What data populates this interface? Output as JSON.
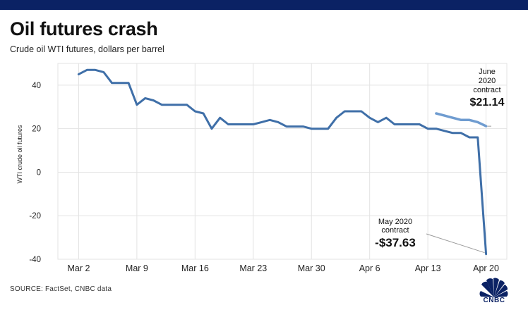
{
  "header": {
    "title": "Oil futures crash",
    "subtitle": "Crude oil WTI futures, dollars per barrel"
  },
  "footer": {
    "source": "SOURCE: FactSet, CNBC data",
    "logo_text": "CNBC"
  },
  "colors": {
    "top_bar": "#0b2264",
    "may_line": "#3f6fa8",
    "june_line": "#6f9cd0",
    "grid": "#e3e3e3",
    "axis_text": "#222222"
  },
  "chart_data": {
    "type": "line",
    "title": "Oil futures crash",
    "subtitle": "Crude oil WTI futures, dollars per barrel",
    "ylabel": "WTI crude oil futures",
    "xlabel": "",
    "ylim": [
      -40,
      50
    ],
    "yticks": [
      -40,
      -20,
      0,
      20,
      40
    ],
    "xticks": [
      {
        "label": "Mar 2",
        "day": 0
      },
      {
        "label": "Mar 9",
        "day": 7
      },
      {
        "label": "Mar 16",
        "day": 14
      },
      {
        "label": "Mar 23",
        "day": 21
      },
      {
        "label": "Mar 30",
        "day": 28
      },
      {
        "label": "Apr 6",
        "day": 35
      },
      {
        "label": "Apr 13",
        "day": 42
      },
      {
        "label": "Apr 20",
        "day": 49
      }
    ],
    "xlim": [
      -2.5,
      51.5
    ],
    "grid": true,
    "series": [
      {
        "name": "May 2020 contract",
        "x": [
          0,
          1,
          2,
          3,
          4,
          5,
          6,
          7,
          8,
          9,
          10,
          11,
          12,
          13,
          14,
          15,
          16,
          17,
          18,
          19,
          20,
          21,
          22,
          23,
          24,
          25,
          26,
          27,
          28,
          29,
          30,
          31,
          32,
          33,
          34,
          35,
          36,
          37,
          38,
          39,
          40,
          41,
          42,
          43,
          44,
          45,
          46,
          47,
          48,
          49
        ],
        "values": [
          45,
          47,
          47,
          46,
          41,
          41,
          41,
          31,
          34,
          33,
          31,
          31,
          31,
          31,
          28,
          27,
          20,
          25,
          22,
          22,
          22,
          22,
          23,
          24,
          23,
          21,
          21,
          21,
          20,
          20,
          20,
          25,
          28,
          28,
          28,
          25,
          23,
          25,
          22,
          22,
          22,
          22,
          20,
          20,
          19,
          18,
          18,
          16,
          16,
          -37.63
        ]
      },
      {
        "name": "June 2020 contract",
        "x": [
          43,
          44,
          45,
          46,
          47,
          48,
          49
        ],
        "values": [
          27,
          26,
          25,
          24,
          24,
          23,
          21.14
        ]
      }
    ],
    "annotations": [
      {
        "series": "June 2020 contract",
        "lines": [
          "June",
          "2020",
          "contract"
        ],
        "value": "$21.14"
      },
      {
        "series": "May 2020 contract",
        "lines": [
          "May 2020",
          "contract"
        ],
        "value": "-$37.63"
      }
    ]
  }
}
